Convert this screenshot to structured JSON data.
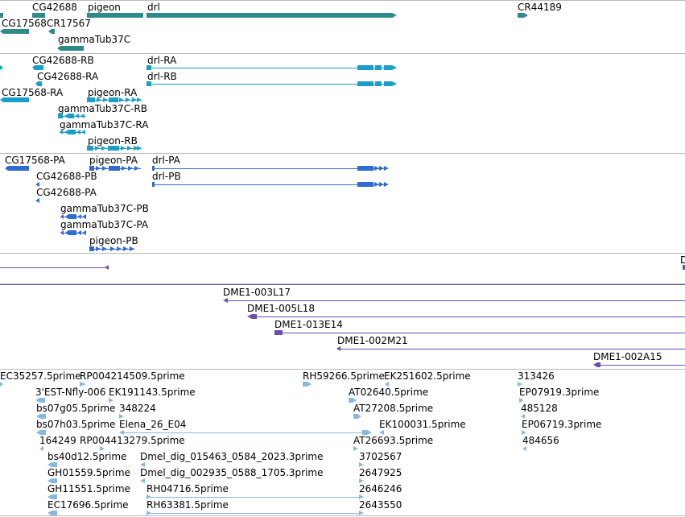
{
  "colors": {
    "gene": "#2e8b8b",
    "transcript": "#1a9fcb",
    "protein": "#2f6bd0",
    "clone": "#6b4fa8",
    "est": "#8ab8dc",
    "separator": "#b8b8b8"
  },
  "tracks": {
    "genes": {
      "labels": [
        "CG42688",
        "pigeon",
        "drl",
        "CR44189",
        "CG17568",
        "CR17567",
        "gammaTub37C"
      ]
    },
    "transcripts": {
      "labels": [
        "CG42688-RB",
        "CG42688-RA",
        "drl-RA",
        "drl-RB",
        "CG17568-RA",
        "pigeon-RA",
        "gammaTub37C-RB",
        "gammaTub37C-RA",
        "pigeon-RB"
      ]
    },
    "proteins": {
      "labels": [
        "CG17568-PA",
        "pigeon-PA",
        "drl-PA",
        "drl-PB",
        "CG42688-PB",
        "CG42688-PA",
        "gammaTub37C-PB",
        "gammaTub37C-PA",
        "pigeon-PB"
      ]
    },
    "clones": {
      "labels": [
        "D",
        "DME1-003L17",
        "DME1-005L18",
        "DME1-013E14",
        "DME1-002M21",
        "DME1-002A15"
      ]
    },
    "ests": {
      "labels": [
        "EC35257.5prime",
        "RP004214509.5prime",
        "RH59266.5prime",
        "EK251602.5prime",
        "313426",
        "3'EST-Nfly-006",
        "EK191143.5prime",
        "AT02640.5prime",
        "EP07919.3prime",
        "bs07g05.5prime",
        "348224",
        "AT27208.5prime",
        "485128",
        "bs07h03.5prime",
        "Elena_26_E04",
        "EK100031.5prime",
        "EP06719.3prime",
        "164249",
        "RP004413279.5prime",
        "AT26693.5prime",
        "484656",
        "bs40d12.5prime",
        "Dmel_dig_015463_0584_2023.3prime",
        "3702567",
        "GH01559.5prime",
        "Dmel_dig_002935_0588_1705.3prime",
        "2647925",
        "GH11551.5prime",
        "RH04716.5prime",
        "2646246",
        "EC17696.5prime",
        "RH63381.5prime",
        "2643550"
      ]
    }
  }
}
